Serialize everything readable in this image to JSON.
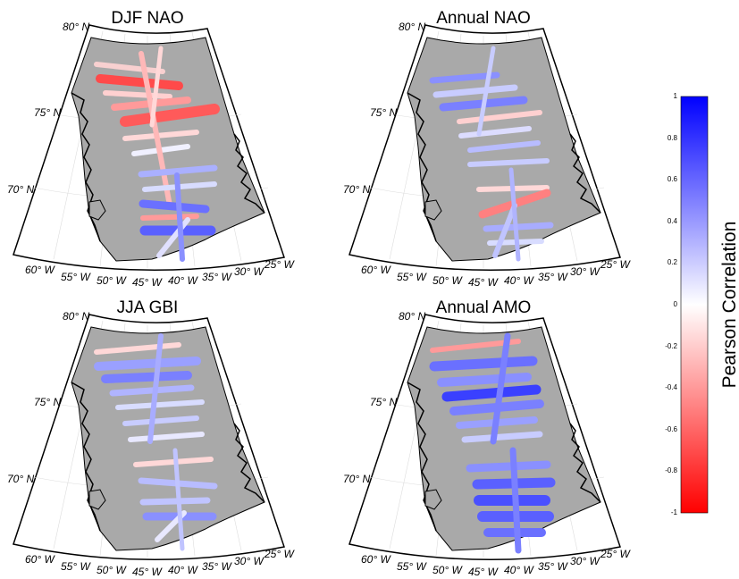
{
  "panels": [
    {
      "title": "DJF NAO",
      "lat_labels": [
        "80° N",
        "75° N",
        "70° N"
      ],
      "lon_labels": [
        "60° W",
        "55° W",
        "50° W",
        "45° W",
        "40° W",
        "35° W",
        "30° W",
        "25° W"
      ]
    },
    {
      "title": "Annual NAO",
      "lat_labels": [
        "80° N",
        "75° N",
        "70° N"
      ],
      "lon_labels": [
        "60° W",
        "55° W",
        "50° W",
        "45° W",
        "40° W",
        "35° W",
        "30° W",
        "25° W"
      ]
    },
    {
      "title": "JJA GBI",
      "lat_labels": [
        "80° N",
        "75° N",
        "70° N"
      ],
      "lon_labels": [
        "60° W",
        "55° W",
        "50° W",
        "45° W",
        "40° W",
        "35° W",
        "30° W",
        "25° W"
      ]
    },
    {
      "title": "Annual AMO",
      "lat_labels": [
        "80° N",
        "75° N",
        "70° N"
      ],
      "lon_labels": [
        "60° W",
        "55° W",
        "50° W",
        "45° W",
        "40° W",
        "35° W",
        "30° W",
        "25° W"
      ]
    }
  ],
  "colorbar": {
    "title": "Pearson Correlation",
    "ticks": [
      "1",
      "0.8",
      "0.6",
      "0.4",
      "0.2",
      "0",
      "-0.2",
      "-0.4",
      "-0.6",
      "-0.8",
      "-1"
    ],
    "color_max": "#0000ff",
    "color_mid": "#ffffff",
    "color_min": "#ff0000"
  },
  "colors": {
    "ice_sheet": "#a9a9a9",
    "background": "#ffffff",
    "coastline": "#000000"
  }
}
